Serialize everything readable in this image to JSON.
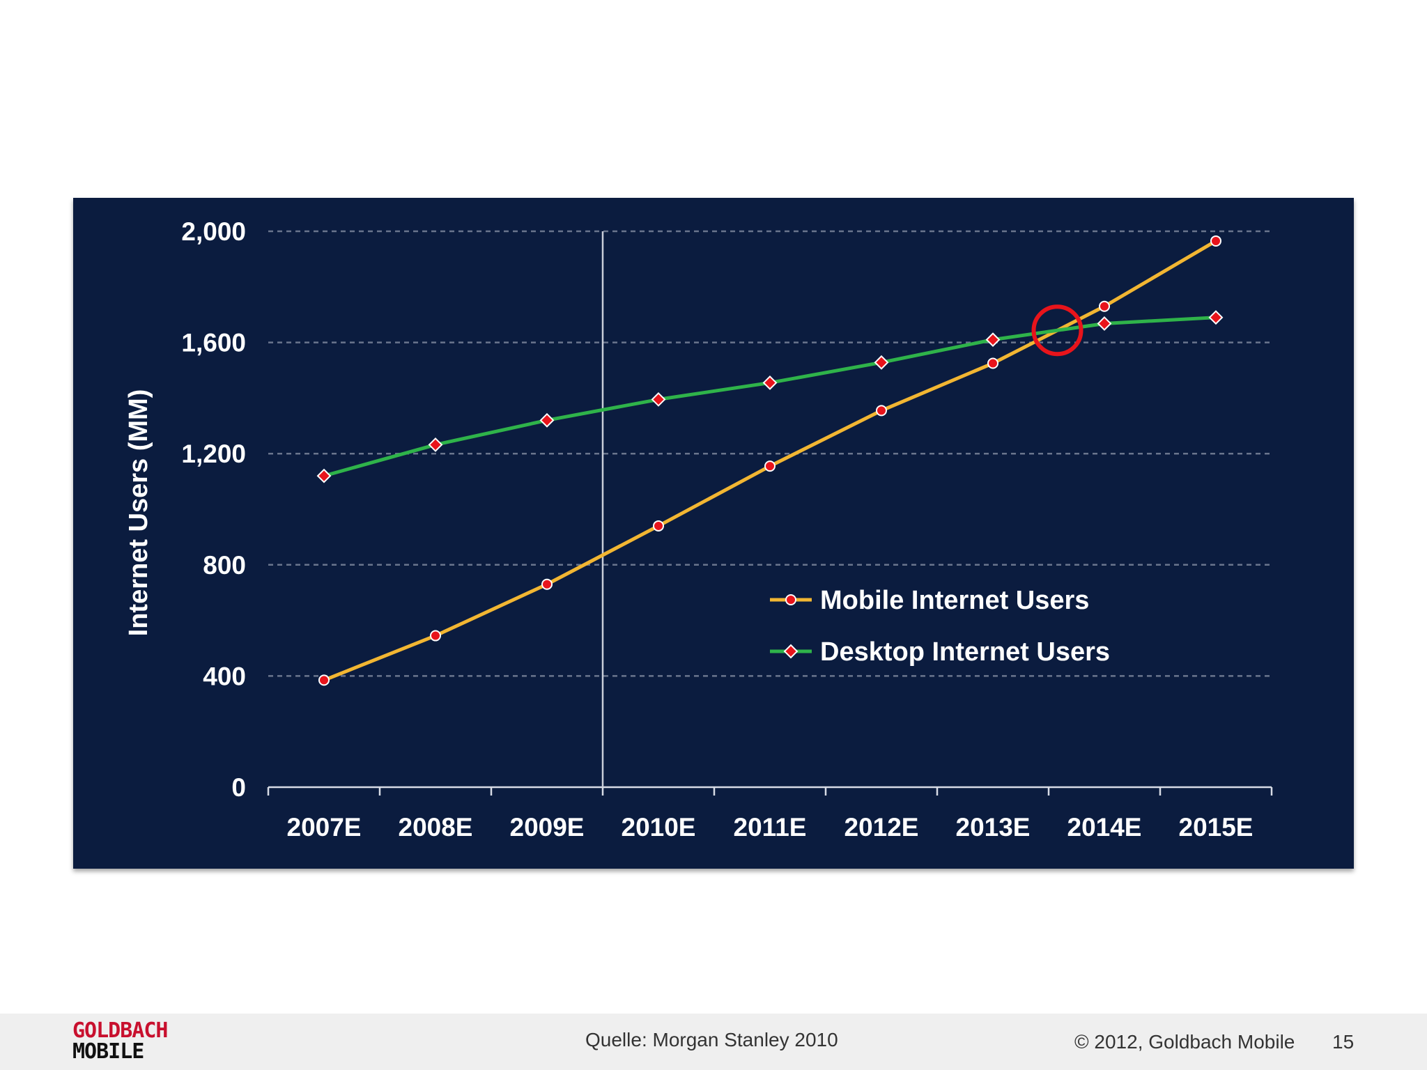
{
  "chart_data": {
    "type": "line",
    "title": "",
    "xlabel": "",
    "ylabel": "Internet Users (MM)",
    "categories": [
      "2007E",
      "2008E",
      "2009E",
      "2010E",
      "2011E",
      "2012E",
      "2013E",
      "2014E",
      "2015E"
    ],
    "yticks": [
      "0",
      "400",
      "800",
      "1,200",
      "1,600",
      "2,000"
    ],
    "ylim": [
      0,
      2000
    ],
    "grid": "horizontal dashed",
    "legend_placement": "center-right",
    "series": [
      {
        "name": "Mobile Internet Users",
        "values": [
          385,
          545,
          730,
          940,
          1155,
          1355,
          1525,
          1730,
          1965
        ],
        "line_color": "#f2b632",
        "marker": "circle"
      },
      {
        "name": "Desktop Internet Users",
        "values": [
          1120,
          1232,
          1320,
          1395,
          1455,
          1528,
          1610,
          1668,
          1690
        ],
        "line_color": "#2fb34a",
        "marker": "diamond"
      }
    ],
    "marker_color": "#e8141b",
    "annotation": "crossover circle between 2013E and 2014E",
    "divider_after": "2009E"
  },
  "footer": {
    "logo_line1": "GOLDBACH",
    "logo_line2": "MOBILE",
    "source": "Quelle: Morgan Stanley 2010",
    "copyright": "© 2012, Goldbach Mobile",
    "page_number": "15"
  }
}
